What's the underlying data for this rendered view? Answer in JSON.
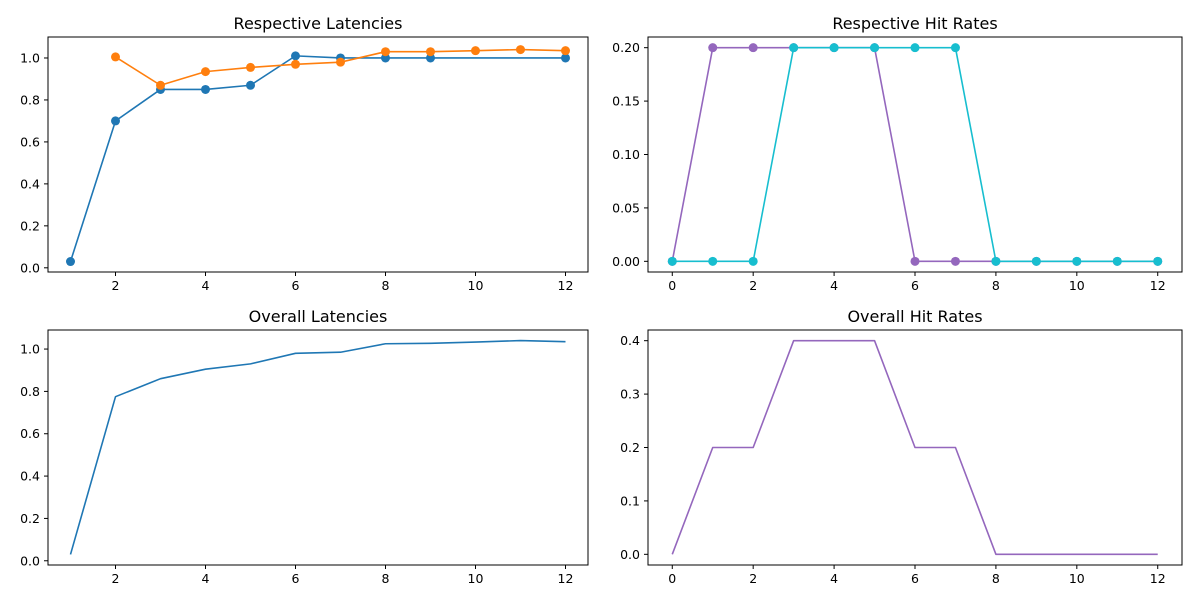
{
  "colors": {
    "blue": "#1f77b4",
    "orange": "#ff7f0e",
    "purple": "#9467bd",
    "cyan": "#17becf"
  },
  "chart_data": [
    {
      "id": "respective-latencies",
      "type": "line",
      "title": "Respective Latencies",
      "xlim": [
        0.5,
        12.5
      ],
      "ylim": [
        -0.02,
        1.1
      ],
      "xticks": [
        2,
        4,
        6,
        8,
        10,
        12
      ],
      "yticks": [
        "0.0",
        "0.2",
        "0.4",
        "0.6",
        "0.8",
        "1.0"
      ],
      "markers": true,
      "series": [
        {
          "color": "#1f77b4",
          "x": [
            1,
            2,
            3,
            4,
            5,
            6,
            7,
            8,
            9,
            12
          ],
          "y": [
            0.03,
            0.7,
            0.85,
            0.85,
            0.87,
            1.01,
            1.0,
            1.0,
            1.0,
            1.0
          ]
        },
        {
          "color": "#ff7f0e",
          "x": [
            2,
            3,
            4,
            5,
            6,
            7,
            8,
            9,
            10,
            11,
            12
          ],
          "y": [
            1.005,
            0.87,
            0.935,
            0.955,
            0.97,
            0.98,
            1.03,
            1.03,
            1.035,
            1.04,
            1.035
          ]
        }
      ]
    },
    {
      "id": "respective-hit-rates",
      "type": "line",
      "title": "Respective Hit Rates",
      "xlim": [
        -0.6,
        12.6
      ],
      "ylim": [
        -0.01,
        0.21
      ],
      "xticks": [
        0,
        2,
        4,
        6,
        8,
        10,
        12
      ],
      "yticks": [
        "0.00",
        "0.05",
        "0.10",
        "0.15",
        "0.20"
      ],
      "markers": true,
      "series": [
        {
          "color": "#9467bd",
          "x": [
            0,
            1,
            2,
            3,
            4,
            5,
            6,
            7,
            8,
            9,
            10,
            11,
            12
          ],
          "y": [
            0,
            0.2,
            0.2,
            0.2,
            0.2,
            0.2,
            0,
            0,
            0,
            0,
            0,
            0,
            0
          ]
        },
        {
          "color": "#17becf",
          "x": [
            0,
            1,
            2,
            3,
            4,
            5,
            6,
            7,
            8,
            9,
            10,
            11,
            12
          ],
          "y": [
            0,
            0,
            0,
            0.2,
            0.2,
            0.2,
            0.2,
            0.2,
            0,
            0,
            0,
            0,
            0
          ]
        }
      ]
    },
    {
      "id": "overall-latencies",
      "type": "line",
      "title": "Overall Latencies",
      "xlim": [
        0.5,
        12.5
      ],
      "ylim": [
        -0.02,
        1.09
      ],
      "xticks": [
        2,
        4,
        6,
        8,
        10,
        12
      ],
      "yticks": [
        "0.0",
        "0.2",
        "0.4",
        "0.6",
        "0.8",
        "1.0"
      ],
      "markers": false,
      "series": [
        {
          "color": "#1f77b4",
          "x": [
            1,
            2,
            3,
            4,
            5,
            6,
            7,
            8,
            9,
            10,
            11,
            12
          ],
          "y": [
            0.03,
            0.775,
            0.86,
            0.905,
            0.93,
            0.98,
            0.985,
            1.025,
            1.027,
            1.033,
            1.04,
            1.035
          ]
        }
      ]
    },
    {
      "id": "overall-hit-rates",
      "type": "line",
      "title": "Overall Hit Rates",
      "xlim": [
        -0.6,
        12.6
      ],
      "ylim": [
        -0.02,
        0.42
      ],
      "xticks": [
        0,
        2,
        4,
        6,
        8,
        10,
        12
      ],
      "yticks": [
        "0.0",
        "0.1",
        "0.2",
        "0.3",
        "0.4"
      ],
      "markers": false,
      "series": [
        {
          "color": "#9467bd",
          "x": [
            0,
            1,
            2,
            3,
            4,
            5,
            6,
            7,
            8,
            9,
            10,
            11,
            12
          ],
          "y": [
            0,
            0.2,
            0.2,
            0.4,
            0.4,
            0.4,
            0.2,
            0.2,
            0,
            0,
            0,
            0,
            0
          ]
        }
      ]
    }
  ]
}
